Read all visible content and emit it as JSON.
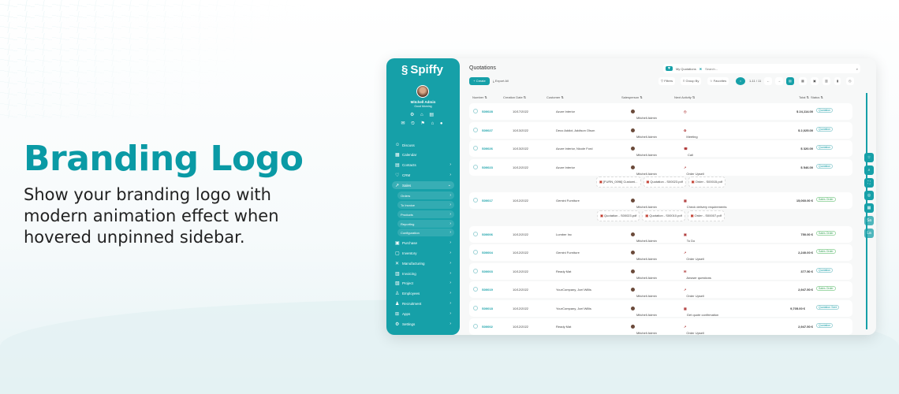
{
  "hero": {
    "title": "Branding Logo",
    "text": "Show your branding logo with modern animation effect when hovered unpinned sidebar."
  },
  "colors": {
    "accent": "#16a0a8",
    "title": "#0a9aa5"
  },
  "sidebar": {
    "logo": "Spiffy",
    "user": "Mitchell Admin",
    "greeting": "Good Morning",
    "items": [
      {
        "label": "Discuss",
        "icon": "chat-icon"
      },
      {
        "label": "Calendar",
        "icon": "calendar-icon"
      },
      {
        "label": "Contacts",
        "icon": "contacts-icon",
        "chev": true
      },
      {
        "label": "CRM",
        "icon": "crm-icon",
        "chev": true
      },
      {
        "label": "Sales",
        "icon": "sales-icon",
        "chev": true,
        "active": true,
        "open": true
      },
      {
        "label": "Orders",
        "sub": true
      },
      {
        "label": "To Invoice",
        "sub": true
      },
      {
        "label": "Products",
        "sub": true
      },
      {
        "label": "Reporting",
        "sub": true
      },
      {
        "label": "Configuration",
        "sub": true
      },
      {
        "label": "Purchase",
        "icon": "purchase-icon",
        "chev": true
      },
      {
        "label": "Inventory",
        "icon": "inventory-icon",
        "chev": true
      },
      {
        "label": "Manufacturing",
        "icon": "manufacturing-icon",
        "chev": true
      },
      {
        "label": "Invoicing",
        "icon": "invoicing-icon",
        "chev": true
      },
      {
        "label": "Project",
        "icon": "project-icon",
        "chev": true
      },
      {
        "label": "Employees",
        "icon": "employees-icon",
        "chev": true
      },
      {
        "label": "Recruitment",
        "icon": "recruitment-icon",
        "chev": true
      },
      {
        "label": "Apps",
        "icon": "apps-icon",
        "chev": true
      },
      {
        "label": "Settings",
        "icon": "gear-icon",
        "chev": true
      }
    ]
  },
  "main": {
    "title": "Quotations",
    "create": "+ Create",
    "export": "Export All",
    "facet": "My Quotations",
    "search_placeholder": "Search...",
    "filters": "Filters",
    "group_by": "Group By",
    "favorites": "Favorites",
    "pager": "1-11 / 11",
    "columns": [
      "Number",
      "Creation Date",
      "Customer",
      "Salesperson",
      "Next Activity",
      "Total",
      "Status"
    ],
    "rows": [
      {
        "type": "row",
        "num": "S00028",
        "date": "10/17/2022",
        "customer": "Azure Interior",
        "sp": "Mitchell Admin",
        "act": "",
        "icon": "clock-icon",
        "total": "$ 24,114.00",
        "status": "Quotation"
      },
      {
        "type": "row",
        "num": "S00027",
        "date": "10/13/2022",
        "customer": "Deco Addict, Addison Olson",
        "sp": "Mitchell Admin",
        "act": "Meeting",
        "icon": "meeting-icon",
        "total": "$ 2,025.00",
        "status": "Quotation"
      },
      {
        "type": "row",
        "num": "S00026",
        "date": "10/13/2022",
        "customer": "Azure Interior, Nicole Ford",
        "sp": "Mitchell Admin",
        "act": "Call",
        "icon": "phone-icon",
        "total": "$ 320.00",
        "status": "Quotation"
      },
      {
        "type": "row",
        "num": "S00023",
        "date": "10/12/2022",
        "customer": "Azure Interior",
        "sp": "Mitchell Admin",
        "act": "Order Upsell",
        "icon": "chart-icon",
        "total": "$ 546.00",
        "status": "Quotation"
      },
      {
        "type": "att",
        "files": [
          "[FURN_0096] Customi...",
          "Quotation - S00023.pdf",
          "Order - S00015.pdf"
        ]
      },
      {
        "type": "row",
        "num": "S00017",
        "date": "10/12/2022",
        "customer": "Gemini Furniture",
        "sp": "Mitchell Admin",
        "act": "Check delivery requirements",
        "icon": "calendar-icon",
        "total": "15,060.00 €",
        "status": "Sales Order"
      },
      {
        "type": "att",
        "files": [
          "Quotation - S00023.pdf",
          "Quotation - S00010.pdf",
          "Order - S00007.pdf"
        ]
      },
      {
        "type": "row",
        "num": "S00006",
        "date": "10/12/2022",
        "customer": "Lumber Inc",
        "sp": "Mitchell Admin",
        "act": "To Do",
        "icon": "todo-icon",
        "total": "750.00 €",
        "status": "Sales Order"
      },
      {
        "type": "row",
        "num": "S00004",
        "date": "10/12/2022",
        "customer": "Gemini Furniture",
        "sp": "Mitchell Admin",
        "act": "Order Upsell",
        "icon": "chart-icon",
        "total": "2,240.00 €",
        "status": "Sales Order"
      },
      {
        "type": "row",
        "num": "S00003",
        "date": "10/12/2022",
        "customer": "Ready Mat",
        "sp": "Mitchell Admin",
        "act": "Answer questions",
        "icon": "mail-icon",
        "total": "377.50 €",
        "status": "Quotation"
      },
      {
        "type": "row",
        "num": "S00019",
        "date": "10/12/2022",
        "customer": "YourCompany, Joel Willis",
        "sp": "Mitchell Admin",
        "act": "Order Upsell",
        "icon": "chart-icon",
        "total": "2,947.50 €",
        "status": "Sales Order"
      },
      {
        "type": "row",
        "num": "S00018",
        "date": "10/12/2022",
        "customer": "YourCompany, Joel Willis",
        "sp": "Mitchell Admin",
        "act": "Get quote confirmation",
        "icon": "calendar-icon",
        "total": "9,705.00 €",
        "status": "Quotation Sent"
      },
      {
        "type": "row",
        "num": "S00002",
        "date": "10/12/2022",
        "customer": "Ready Mat",
        "sp": "Mitchell Admin",
        "act": "Order Upsell",
        "icon": "chart-icon",
        "total": "2,947.50 €",
        "status": "Quotation"
      }
    ]
  },
  "side_buttons": [
    "☆",
    "⌕",
    "⛶",
    "◎",
    "▦",
    "Sa",
    "La"
  ]
}
